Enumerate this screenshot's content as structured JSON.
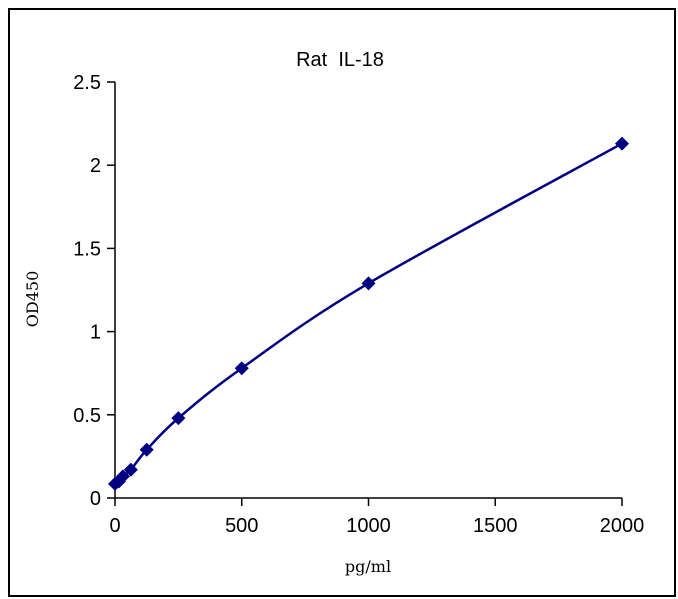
{
  "chart_data": {
    "type": "scatter",
    "title": "Rat  IL-18",
    "xlabel": "pg/ml",
    "ylabel": "OD450",
    "xlim": [
      0,
      2000
    ],
    "ylim": [
      0,
      2.5
    ],
    "x_ticks": [
      0,
      500,
      1000,
      1500,
      2000
    ],
    "y_ticks": [
      0,
      0.5,
      1,
      1.5,
      2,
      2.5
    ],
    "x_tick_labels": [
      "0",
      "500",
      "1000",
      "1500",
      "2000"
    ],
    "y_tick_labels": [
      "0",
      "0.5",
      "1",
      "1.5",
      "2",
      "2.5"
    ],
    "grid": false,
    "legend": "none",
    "series": [
      {
        "marker": "diamond",
        "color": "#000080",
        "trendline": "smooth curve",
        "x": [
          0,
          15.6,
          31.25,
          62.5,
          125,
          250,
          500,
          1000,
          2000
        ],
        "y": [
          0.085,
          0.1,
          0.13,
          0.17,
          0.29,
          0.48,
          0.78,
          1.29,
          2.13
        ]
      }
    ]
  }
}
